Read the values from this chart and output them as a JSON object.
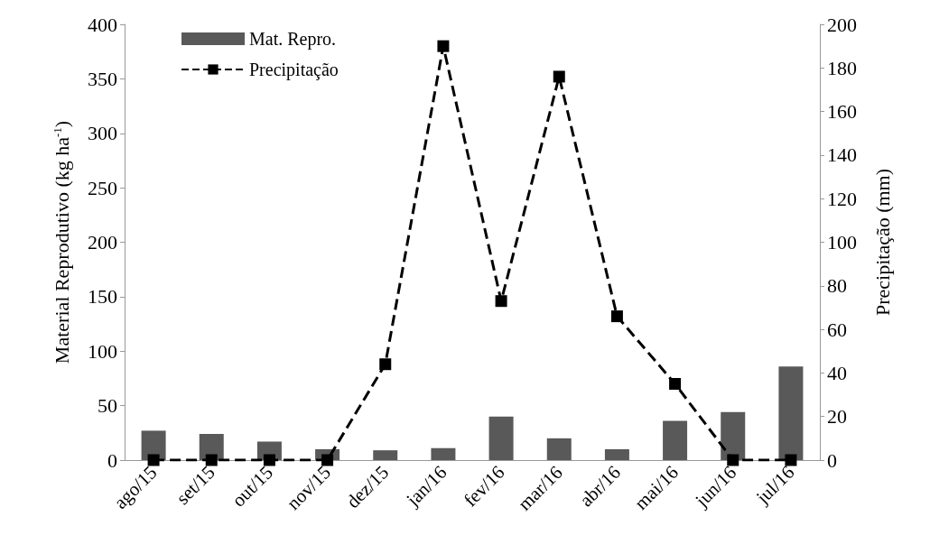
{
  "chart_data": {
    "type": "bar",
    "ylabel": "Material Reprodutivo (kg ha$^{-1}$)",
    "y2label": "Precipitação (mm)",
    "categories": [
      "ago/15",
      "set/15",
      "out/15",
      "nov/15",
      "dez/15",
      "jan/16",
      "fev/16",
      "mar/16",
      "abr/16",
      "mai/16",
      "jun/16",
      "jul/16"
    ],
    "series": [
      {
        "name": "Mat. Repro.",
        "color": "#595959",
        "values": [
          27,
          24,
          17,
          10,
          9,
          11,
          40,
          20,
          10,
          36,
          44,
          86
        ]
      },
      {
        "name": "Precipitação",
        "type": "line",
        "axis": "y2",
        "color": "#000000",
        "line_style": "dashed",
        "marker": "square",
        "values": [
          0,
          0,
          0,
          0,
          44,
          190,
          73,
          176,
          66,
          35,
          0,
          0
        ]
      }
    ],
    "ylim": [
      0,
      400
    ],
    "yticks": [
      0,
      50,
      100,
      150,
      200,
      250,
      300,
      350,
      400
    ],
    "y2lim": [
      0,
      200
    ],
    "y2ticks": [
      0,
      20,
      40,
      60,
      80,
      100,
      120,
      140,
      160,
      180,
      200
    ],
    "legend": "top left"
  }
}
